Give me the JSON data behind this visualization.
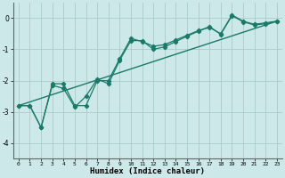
{
  "xlabel": "Humidex (Indice chaleur)",
  "background_color": "#cce8e8",
  "grid_color": "#aacccc",
  "line_color": "#1a7a6a",
  "xlim": [
    -0.5,
    23.5
  ],
  "ylim": [
    -4.5,
    0.5
  ],
  "xticks": [
    0,
    1,
    2,
    3,
    4,
    5,
    6,
    7,
    8,
    9,
    10,
    11,
    12,
    13,
    14,
    15,
    16,
    17,
    18,
    19,
    20,
    21,
    22,
    23
  ],
  "yticks": [
    0,
    -1,
    -2,
    -3,
    -4
  ],
  "series1_x": [
    0,
    1,
    2,
    3,
    4,
    5,
    6,
    7,
    8,
    9,
    10,
    11,
    12,
    13,
    14,
    15,
    16,
    17,
    18,
    19,
    20,
    21,
    22,
    23
  ],
  "series1_y": [
    -2.8,
    -2.8,
    -3.5,
    -2.1,
    -2.1,
    -2.8,
    -2.8,
    -2.0,
    -2.0,
    -1.3,
    -0.65,
    -0.75,
    -0.9,
    -0.85,
    -0.7,
    -0.55,
    -0.4,
    -0.3,
    -0.5,
    0.1,
    -0.1,
    -0.2,
    -0.15,
    -0.1
  ],
  "series2_x": [
    0,
    1,
    2,
    3,
    4,
    5,
    6,
    7,
    8,
    9,
    10,
    11,
    12,
    13,
    14,
    15,
    16,
    17,
    18,
    19,
    20,
    21,
    22,
    23
  ],
  "series2_y": [
    -2.8,
    -2.8,
    -3.5,
    -2.15,
    -2.25,
    -2.85,
    -2.5,
    -1.95,
    -2.1,
    -1.35,
    -0.72,
    -0.72,
    -1.0,
    -0.92,
    -0.75,
    -0.58,
    -0.42,
    -0.27,
    -0.52,
    0.08,
    -0.12,
    -0.22,
    -0.18,
    -0.1
  ],
  "series3_x": [
    0,
    23
  ],
  "series3_y": [
    -2.8,
    -0.1
  ]
}
